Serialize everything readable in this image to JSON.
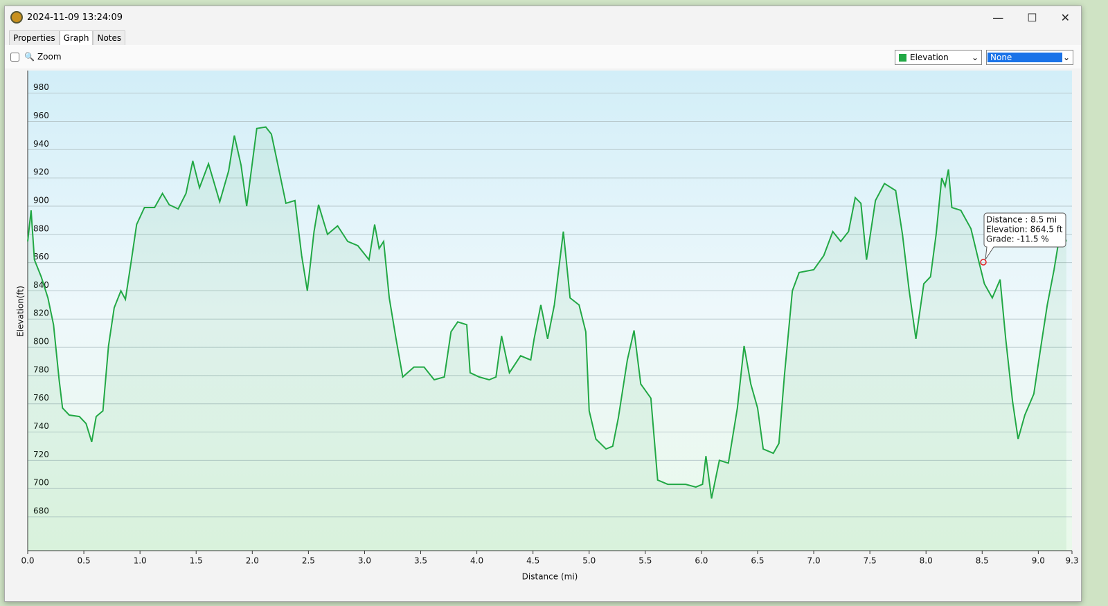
{
  "window": {
    "title": "2024-11-09 13:24:09"
  },
  "tabs": [
    "Properties",
    "Graph",
    "Notes"
  ],
  "toolbar": {
    "zoom_label": "Zoom",
    "second_select": "None"
  },
  "chart_data": {
    "type": "line",
    "x_label": "Distance  (mi)",
    "y_label": "Elevation(ft)",
    "x": [
      0,
      0.03,
      0.06,
      0.12,
      0.18,
      0.23,
      0.28,
      0.31,
      0.37,
      0.46,
      0.52,
      0.57,
      0.61,
      0.67,
      0.72,
      0.77,
      0.83,
      0.87,
      0.92,
      0.97,
      1.04,
      1.13,
      1.2,
      1.26,
      1.34,
      1.41,
      1.47,
      1.53,
      1.61,
      1.71,
      1.79,
      1.84,
      1.9,
      1.95,
      2.04,
      2.12,
      2.17,
      2.21,
      2.3,
      2.38,
      2.44,
      2.49,
      2.55,
      2.59,
      2.67,
      2.76,
      2.85,
      2.94,
      3.04,
      3.09,
      3.13,
      3.17,
      3.22,
      3.28,
      3.34,
      3.44,
      3.53,
      3.62,
      3.71,
      3.77,
      3.83,
      3.91,
      3.94,
      4.02,
      4.11,
      4.17,
      4.22,
      4.29,
      4.39,
      4.48,
      4.51,
      4.57,
      4.63,
      4.69,
      4.77,
      4.83,
      4.91,
      4.97,
      5.0,
      5.06,
      5.15,
      5.21,
      5.26,
      5.34,
      5.4,
      5.46,
      5.55,
      5.61,
      5.7,
      5.86,
      5.95,
      6.01,
      6.04,
      6.09,
      6.16,
      6.24,
      6.32,
      6.38,
      6.44,
      6.5,
      6.55,
      6.64,
      6.69,
      6.74,
      6.81,
      6.87,
      7.0,
      7.09,
      7.17,
      7.24,
      7.31,
      7.37,
      7.42,
      7.47,
      7.55,
      7.63,
      7.73,
      7.79,
      7.85,
      7.91,
      7.98,
      8.04,
      8.09,
      8.14,
      8.17,
      8.2,
      8.23,
      8.31,
      8.4,
      8.47,
      8.52,
      8.59,
      8.66,
      8.71,
      8.77,
      8.82,
      8.88,
      8.96,
      9.02,
      9.08,
      9.14,
      9.2,
      9.25
    ],
    "series": [
      {
        "name": "Elevation",
        "color": "#22a845",
        "values": [
          875,
          897,
          862,
          850,
          835,
          816,
          777,
          757,
          752,
          751,
          746,
          733,
          751,
          755,
          801,
          828,
          840,
          834,
          860,
          887,
          899,
          899,
          909,
          901,
          898,
          909,
          932,
          913,
          930,
          903,
          925,
          950,
          929,
          900,
          955,
          956,
          951,
          936,
          902,
          904,
          865,
          840,
          882,
          901,
          880,
          886,
          875,
          872,
          862,
          887,
          870,
          875,
          835,
          806,
          779,
          786,
          786,
          777,
          779,
          811,
          818,
          816,
          782,
          779,
          777,
          779,
          808,
          782,
          794,
          791,
          806,
          830,
          806,
          830,
          882,
          835,
          830,
          811,
          755,
          735,
          728,
          730,
          750,
          791,
          812,
          774,
          764,
          706,
          703,
          703,
          701,
          703,
          723,
          693,
          720,
          718,
          757,
          801,
          774,
          757,
          728,
          725,
          732,
          781,
          840,
          853,
          855,
          865,
          882,
          875,
          882,
          906,
          902,
          862,
          904,
          916,
          911,
          880,
          840,
          806,
          845,
          850,
          880,
          920,
          914,
          926,
          899,
          897,
          884,
          861,
          845,
          835,
          848,
          806,
          762,
          735,
          752,
          767,
          799,
          830,
          855,
          884,
          875
        ]
      }
    ],
    "xlim": [
      0,
      9.3
    ],
    "ylim": [
      656,
      996
    ],
    "xticks": [
      {
        "value": 0,
        "label": "0.0"
      },
      0.5,
      {
        "value": 1,
        "label": "1.0"
      },
      1.5,
      {
        "value": 2,
        "label": "2.0"
      },
      2.5,
      {
        "value": 3,
        "label": "3.0"
      },
      3.5,
      {
        "value": 4,
        "label": "4.0"
      },
      4.5,
      {
        "value": 5,
        "label": "5.0"
      },
      5.5,
      {
        "value": 6,
        "label": "6.0"
      },
      6.5,
      {
        "value": 7,
        "label": "7.0"
      },
      7.5,
      {
        "value": 8,
        "label": "8.0"
      },
      8.5,
      {
        "value": 9,
        "label": "9.0"
      },
      9.3
    ],
    "yticks": [
      680,
      700,
      720,
      740,
      760,
      780,
      800,
      820,
      840,
      860,
      880,
      900,
      920,
      940,
      960,
      980
    ],
    "grid": true,
    "tooltip": [
      "Distance  : 8.5 mi",
      "Elevation: 864.5 ft",
      "Grade: -11.5 %"
    ]
  }
}
